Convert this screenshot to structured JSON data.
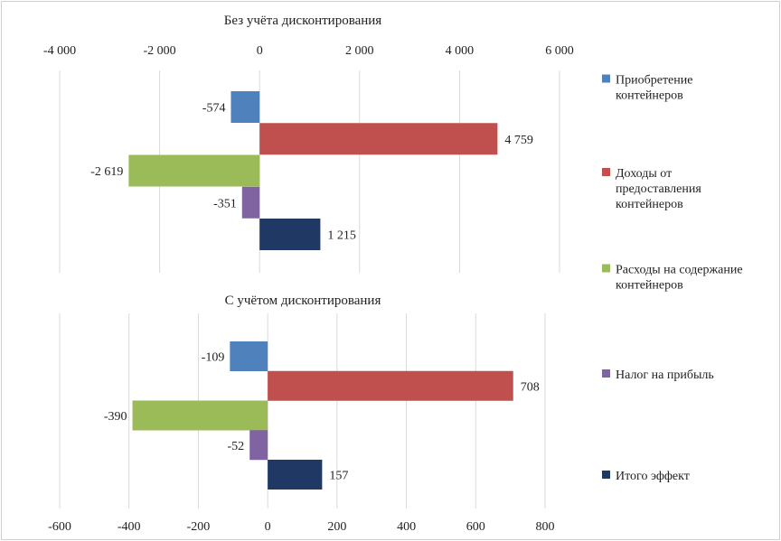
{
  "colors": {
    "acquisition": "#4f81bd",
    "revenue": "#c0504d",
    "costs": "#9bbb59",
    "tax": "#8064a2",
    "total": "#1f3864",
    "grid": "#d9d9d9"
  },
  "legend": [
    {
      "key": "acquisition",
      "lines": [
        "Приобретение",
        "контейнеров"
      ],
      "icon": "legend-swatch-blue"
    },
    {
      "key": "revenue",
      "lines": [
        "Доходы от",
        "предоставления",
        "контейнеров"
      ],
      "icon": "legend-swatch-red"
    },
    {
      "key": "costs",
      "lines": [
        "Расходы на содержание",
        "контейнеров"
      ],
      "icon": "legend-swatch-green"
    },
    {
      "key": "tax",
      "lines": [
        "Налог на прибыль"
      ],
      "icon": "legend-swatch-purple"
    },
    {
      "key": "total",
      "lines": [
        "Итого эффект"
      ],
      "icon": "legend-swatch-navy"
    }
  ],
  "chart_data": [
    {
      "type": "bar",
      "orientation": "horizontal",
      "title": "Без учёта дисконтирования",
      "series_keys": [
        "acquisition",
        "revenue",
        "costs",
        "tax",
        "total"
      ],
      "values": [
        -574,
        4759,
        -2619,
        -351,
        1215
      ],
      "value_labels": [
        "-574",
        "4 759",
        "-2 619",
        "-351",
        "1 215"
      ],
      "xlim": [
        -4000,
        6000
      ],
      "ticks": [
        -4000,
        -2000,
        0,
        2000,
        4000,
        6000
      ],
      "tick_labels": [
        "-4 000",
        "-2 000",
        "0",
        "2 000",
        "4 000",
        "6 000"
      ],
      "axis_position": "top",
      "grid": true
    },
    {
      "type": "bar",
      "orientation": "horizontal",
      "title": "С учётом дисконтирования",
      "series_keys": [
        "acquisition",
        "revenue",
        "costs",
        "tax",
        "total"
      ],
      "values": [
        -109,
        708,
        -390,
        -52,
        157
      ],
      "value_labels": [
        "-109",
        "708",
        "-390",
        "-52",
        "157"
      ],
      "xlim": [
        -600,
        800
      ],
      "ticks": [
        -600,
        -400,
        -200,
        0,
        200,
        400,
        600,
        800
      ],
      "tick_labels": [
        "-600",
        "-400",
        "-200",
        "0",
        "200",
        "400",
        "600",
        "800"
      ],
      "axis_position": "bottom",
      "grid": true
    }
  ]
}
